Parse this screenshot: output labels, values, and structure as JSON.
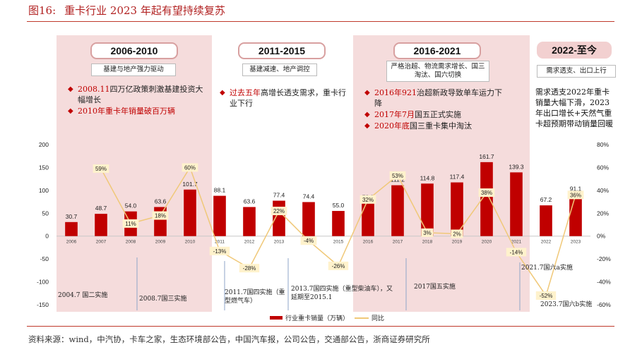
{
  "figure": {
    "number": "图16:",
    "title": "重卡行业 2023 年起有望持续复苏"
  },
  "periods": [
    {
      "label": "2006-2010",
      "sub": "基建与地产强力驱动",
      "notes": [
        {
          "red": "2008.11",
          "text": "四万亿政策刺激基建投资大幅增长"
        },
        {
          "red": "2010年",
          "text": "重卡年销量破百万辆"
        }
      ]
    },
    {
      "label": "2011-2015",
      "sub": "基建减速、地产调控",
      "notes": [
        {
          "red": "过去五年",
          "text": "高增长透支需求，重卡行业下行"
        }
      ]
    },
    {
      "label": "2016-2021",
      "sub": "严格治超、物流需求增长、国三淘汰、国六切换",
      "notes": [
        {
          "red": "2016年921",
          "text": "治超新政导致单车运力下降"
        },
        {
          "red": "2017年7月",
          "text": "国五正式实施"
        },
        {
          "red": "2020年底",
          "text": "国三重卡集中淘汰"
        }
      ]
    },
    {
      "label": "2022-至今",
      "sub": "需求透支、出口上行",
      "notes": [
        {
          "red": "",
          "text": "需求透支2022年重卡销量大幅下滑，2023年出口增长+天然气重卡超预期带动销量回暖"
        }
      ]
    }
  ],
  "standards": [
    "2004.7 国二实施",
    "2008.7国三实施",
    "2011.7国四实施（重型燃气车）",
    "2013.7国四实施（重型柴油车），又延期至2015.1",
    "2017国五实施",
    "2021.7国六a实施",
    "2023.7国六b实施"
  ],
  "source": "资料来源：wind，中汽协，卡车之家，生态环境部公告，中国汽车报，公司公告，交通部公告，浙商证券研究所",
  "colors": {
    "bar": "#c00000",
    "line": "#f0c878",
    "panel": "#f5dcdc",
    "accent": "#c0392b"
  },
  "chart_data": {
    "type": "bar+line",
    "categories": [
      "2006",
      "2007",
      "2008",
      "2009",
      "2010",
      "2011",
      "2012",
      "2013",
      "2014",
      "2015",
      "2016",
      "2017",
      "2018",
      "2019",
      "2020",
      "2021",
      "2022",
      "2023"
    ],
    "series": [
      {
        "name": "行业重卡销量（万辆）",
        "type": "bar",
        "axis": "left",
        "values": [
          30.7,
          48.7,
          54.0,
          63.6,
          101.7,
          88.1,
          63.6,
          77.4,
          74.4,
          55.0,
          72.8,
          111.2,
          114.8,
          117.4,
          161.7,
          139.3,
          67.2,
          91.1
        ],
        "labels": [
          "30.7",
          "48.7",
          "54.0",
          "63.6",
          "101.7",
          "88.1",
          "63.6",
          "77.4",
          "74.4",
          "55.0",
          "72.8",
          "111.2",
          "114.8",
          "117.4",
          "161.7",
          "139.3",
          "67.2",
          "91.1"
        ]
      },
      {
        "name": "同比",
        "type": "line",
        "axis": "right",
        "values": [
          null,
          59,
          11,
          18,
          60,
          -13,
          -28,
          22,
          -4,
          -26,
          32,
          53,
          3,
          2,
          38,
          -14,
          -52,
          36
        ],
        "labels": [
          "",
          "59%",
          "11%",
          "18%",
          "60%",
          "-13%",
          "-28%",
          "22%",
          "-4%",
          "-26%",
          "32%",
          "53%",
          "3%",
          "2%",
          "38%",
          "-14%",
          "-52%",
          "36%"
        ]
      }
    ],
    "y_left": {
      "min": -150,
      "max": 200,
      "ticks": [
        "200",
        "150",
        "100",
        "50",
        "0",
        "-50",
        "-100",
        "-150"
      ]
    },
    "y_right": {
      "min": -60,
      "max": 80,
      "ticks": [
        "80%",
        "60%",
        "40%",
        "20%",
        "0%",
        "-20%",
        "-40%",
        "-60%"
      ]
    },
    "legend_position": "bottom"
  }
}
